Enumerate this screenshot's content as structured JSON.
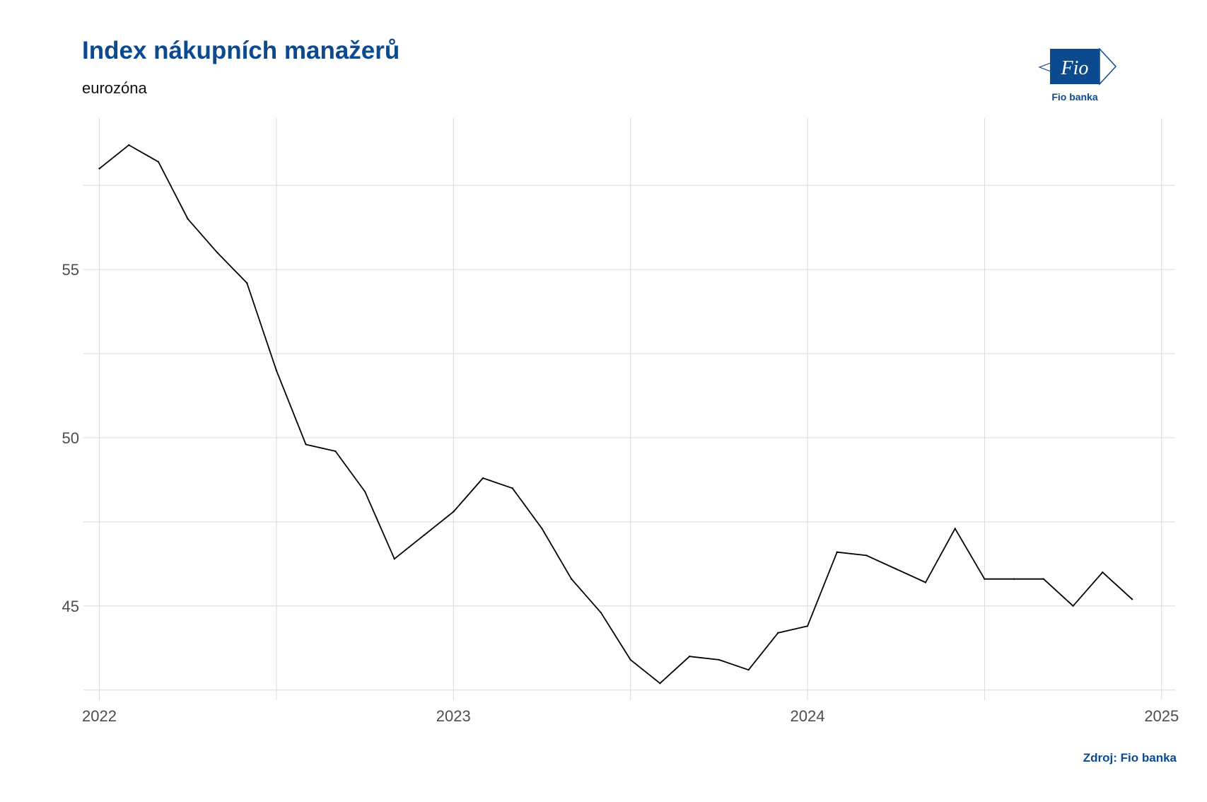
{
  "chart_data": {
    "type": "line",
    "title": "Index nákupních manažerů",
    "subtitle": "eurozóna",
    "xlabel": "",
    "ylabel": "",
    "x": [
      "2022-01",
      "2022-02",
      "2022-03",
      "2022-04",
      "2022-05",
      "2022-06",
      "2022-07",
      "2022-08",
      "2022-09",
      "2022-10",
      "2022-11",
      "2022-12",
      "2023-01",
      "2023-02",
      "2023-03",
      "2023-04",
      "2023-05",
      "2023-06",
      "2023-07",
      "2023-08",
      "2023-09",
      "2023-10",
      "2023-11",
      "2023-12",
      "2024-01",
      "2024-02",
      "2024-03",
      "2024-04",
      "2024-05",
      "2024-06",
      "2024-07",
      "2024-08",
      "2024-09",
      "2024-10",
      "2024-11",
      "2024-12"
    ],
    "series": [
      {
        "values": [
          58.0,
          58.7,
          58.2,
          56.5,
          55.5,
          54.6,
          52.0,
          49.8,
          49.6,
          48.4,
          46.4,
          47.1,
          47.8,
          48.8,
          48.5,
          47.3,
          45.8,
          44.8,
          43.4,
          42.7,
          43.5,
          43.4,
          43.1,
          44.2,
          44.4,
          46.6,
          46.5,
          46.1,
          45.7,
          47.3,
          45.8,
          45.8,
          45.8,
          45.0,
          46.0,
          45.2
        ],
        "color": "#000000"
      }
    ],
    "xlim": [
      "2021-12-15",
      "2025-01-15"
    ],
    "ylim": [
      42.2,
      59.5
    ],
    "x_ticks": [
      "2022",
      "2023",
      "2024",
      "2025"
    ],
    "y_ticks": [
      "45",
      "50",
      "55"
    ],
    "grid": true,
    "legend": "none"
  },
  "logo": {
    "text": "Fio banka",
    "mark": "Fio",
    "color": "#0b4a8f"
  },
  "source": "Zdroj: Fio banka",
  "colors": {
    "title": "#0b4a8f",
    "grid": "#d9d9d9",
    "line": "#000000"
  }
}
